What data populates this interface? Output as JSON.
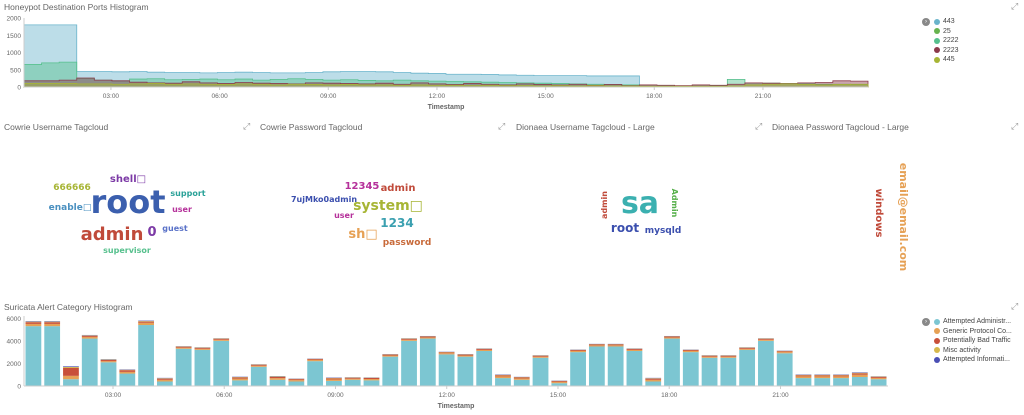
{
  "panels": {
    "ports_title": "Honeypot Destination Ports Histogram",
    "cowrie_user_title": "Cowrie Username Tagcloud",
    "cowrie_pass_title": "Cowrie Password Tagcloud",
    "dionaea_user_title": "Dionaea Username Tagcloud - Large",
    "dionaea_pass_title": "Dionaea Password Tagcloud - Large",
    "suricata_title": "Suricata Alert Category Histogram"
  },
  "icons": {
    "expand": "expand-icon",
    "legend_toggle": "chevron-right-icon"
  },
  "chart_data": [
    {
      "type": "area",
      "title": "Honeypot Destination Ports Histogram",
      "xlabel": "Timestamp",
      "x_ticks": [
        "03:00",
        "06:00",
        "09:00",
        "12:00",
        "15:00",
        "18:00",
        "21:00"
      ],
      "y_ticks": [
        "0",
        "500",
        "1000",
        "1500",
        "2000"
      ],
      "y_tick_values": [
        0,
        500,
        1000,
        1500,
        2000
      ],
      "legend_position": "right",
      "series": [
        {
          "name": "443",
          "color": "#6ab4cb",
          "values": [
            1800,
            1800,
            1800,
            450,
            450,
            440,
            450,
            430,
            420,
            420,
            410,
            420,
            430,
            420,
            410,
            410,
            420,
            440,
            450,
            450,
            440,
            420,
            400,
            390,
            370,
            370,
            360,
            350,
            340,
            330,
            330,
            330,
            320,
            320,
            320,
            0,
            0,
            0,
            0,
            0,
            0,
            0,
            0,
            0,
            0,
            0,
            0,
            0
          ]
        },
        {
          "name": "25",
          "color": "#67b34e",
          "values": [
            0,
            0,
            0,
            0,
            0,
            0,
            0,
            0,
            0,
            0,
            0,
            0,
            0,
            0,
            0,
            0,
            0,
            0,
            0,
            0,
            0,
            0,
            0,
            0,
            0,
            0,
            0,
            0,
            0,
            0,
            0,
            0,
            0,
            0,
            0,
            0,
            0,
            0,
            0,
            0,
            0,
            0,
            0,
            0,
            0,
            0,
            0,
            0
          ]
        },
        {
          "name": "2222",
          "color": "#56c08d",
          "values": [
            650,
            700,
            720,
            250,
            200,
            180,
            230,
            240,
            210,
            220,
            230,
            210,
            230,
            200,
            220,
            240,
            220,
            200,
            210,
            190,
            180,
            200,
            180,
            170,
            160,
            150,
            140,
            130,
            120,
            110,
            100,
            90,
            80,
            70,
            60,
            30,
            30,
            30,
            30,
            40,
            220,
            120,
            110,
            100,
            90,
            80,
            80,
            70
          ]
        },
        {
          "name": "2223",
          "color": "#8b3a4a",
          "values": [
            180,
            180,
            200,
            260,
            200,
            180,
            140,
            120,
            110,
            150,
            120,
            100,
            130,
            110,
            100,
            90,
            120,
            110,
            100,
            90,
            110,
            80,
            120,
            90,
            70,
            100,
            80,
            60,
            90,
            70,
            60,
            80,
            50,
            70,
            40,
            60,
            50,
            40,
            60,
            50,
            80,
            120,
            110,
            100,
            120,
            130,
            180,
            170
          ]
        },
        {
          "name": "445",
          "color": "#a7b535",
          "values": [
            100,
            100,
            100,
            90,
            90,
            80,
            90,
            100,
            80,
            90,
            80,
            70,
            90,
            80,
            60,
            80,
            70,
            60,
            70,
            60,
            60,
            50,
            60,
            50,
            50,
            40,
            50,
            40,
            40,
            30,
            40,
            30,
            40,
            30,
            30,
            20,
            20,
            20,
            20,
            20,
            30,
            60,
            80,
            90,
            70,
            60,
            70,
            80
          ]
        }
      ]
    },
    {
      "type": "bar",
      "title": "Suricata Alert Category Histogram",
      "xlabel": "Timestamp",
      "x_ticks": [
        "03:00",
        "06:00",
        "09:00",
        "12:00",
        "15:00",
        "18:00",
        "21:00"
      ],
      "y_ticks": [
        "0",
        "2000",
        "4000",
        "6000"
      ],
      "y_tick_values": [
        0,
        2000,
        4000,
        6000
      ],
      "legend_position": "right",
      "series": [
        {
          "name": "Attempted Administr...",
          "color": "#7cc6d2",
          "values": [
            5300,
            5300,
            600,
            4200,
            2100,
            1100,
            5400,
            400,
            3300,
            3200,
            4000,
            500,
            1700,
            550,
            400,
            2200,
            450,
            550,
            500,
            2600,
            4000,
            4200,
            2800,
            2600,
            3100,
            700,
            550,
            2500,
            250,
            3000,
            3500,
            3500,
            3100,
            400,
            4200,
            3000,
            2500,
            2500,
            3200,
            4000,
            2900,
            700,
            700,
            700,
            800,
            600
          ]
        },
        {
          "name": "Generic Protocol Co...",
          "color": "#e6a155",
          "values": [
            200,
            200,
            300,
            150,
            100,
            150,
            200,
            150,
            100,
            100,
            100,
            150,
            100,
            150,
            120,
            100,
            130,
            100,
            120,
            100,
            100,
            100,
            100,
            100,
            100,
            150,
            120,
            100,
            100,
            100,
            100,
            100,
            100,
            150,
            100,
            100,
            100,
            100,
            100,
            100,
            100,
            150,
            150,
            150,
            200,
            120
          ]
        },
        {
          "name": "Potentially Bad Traffic",
          "color": "#c8503a",
          "values": [
            150,
            150,
            700,
            100,
            100,
            150,
            100,
            100,
            80,
            80,
            80,
            100,
            80,
            100,
            90,
            80,
            100,
            80,
            90,
            80,
            80,
            80,
            80,
            80,
            80,
            100,
            90,
            80,
            80,
            80,
            80,
            80,
            80,
            100,
            80,
            80,
            80,
            80,
            80,
            80,
            80,
            100,
            100,
            100,
            120,
            90
          ]
        },
        {
          "name": "Misc activity",
          "color": "#d6b84c",
          "values": [
            50,
            50,
            80,
            40,
            40,
            40,
            50,
            40,
            30,
            30,
            30,
            40,
            30,
            40,
            30,
            30,
            40,
            30,
            30,
            30,
            30,
            30,
            30,
            30,
            30,
            40,
            30,
            30,
            30,
            30,
            30,
            30,
            30,
            40,
            30,
            30,
            30,
            30,
            30,
            30,
            30,
            40,
            40,
            40,
            50,
            30
          ]
        },
        {
          "name": "Attempted Informati...",
          "color": "#4a4fb4",
          "values": [
            40,
            40,
            60,
            30,
            30,
            30,
            40,
            30,
            20,
            20,
            20,
            30,
            20,
            30,
            20,
            20,
            30,
            20,
            20,
            20,
            20,
            20,
            20,
            20,
            20,
            30,
            20,
            20,
            20,
            20,
            20,
            20,
            20,
            30,
            20,
            20,
            20,
            20,
            20,
            20,
            20,
            30,
            30,
            30,
            40,
            20
          ]
        }
      ]
    },
    {
      "type": "tagcloud",
      "title": "Cowrie Username Tagcloud",
      "tags": [
        {
          "text": "root",
          "color": "#3b5fae"
        },
        {
          "text": "admin",
          "color": "#c04a3a"
        },
        {
          "text": "shell□",
          "color": "#7c3aa6"
        },
        {
          "text": "666666",
          "color": "#a7b535"
        },
        {
          "text": "enable□",
          "color": "#4a90c0"
        },
        {
          "text": "support",
          "color": "#2aa198"
        },
        {
          "text": "user",
          "color": "#b5309a"
        },
        {
          "text": "guest",
          "color": "#5a72c8"
        },
        {
          "text": "0",
          "color": "#7c3aa6"
        },
        {
          "text": "supervisor",
          "color": "#56c08d"
        }
      ]
    },
    {
      "type": "tagcloud",
      "title": "Cowrie Password Tagcloud",
      "tags": [
        {
          "text": "12345",
          "color": "#b5309a"
        },
        {
          "text": "admin",
          "color": "#c04a3a"
        },
        {
          "text": "7ujMko0admin",
          "color": "#3b4fae"
        },
        {
          "text": "system□",
          "color": "#a7b535"
        },
        {
          "text": "user",
          "color": "#b5309a"
        },
        {
          "text": "1234",
          "color": "#3ba0b0"
        },
        {
          "text": "sh□",
          "color": "#e6a155"
        },
        {
          "text": "password",
          "color": "#c86a3a"
        }
      ]
    },
    {
      "type": "tagcloud",
      "title": "Dionaea Username Tagcloud - Large",
      "tags": [
        {
          "text": "sa",
          "color": "#3bb0b0"
        },
        {
          "text": "root",
          "color": "#3b4fae"
        },
        {
          "text": "mysqld",
          "color": "#3b4fae"
        },
        {
          "text": "admin",
          "color": "#c04a3a"
        },
        {
          "text": "Admin",
          "color": "#56b04a"
        }
      ]
    },
    {
      "type": "tagcloud",
      "title": "Dionaea Password Tagcloud - Large",
      "tags": [
        {
          "text": "email@email.com",
          "color": "#e6a155"
        },
        {
          "text": "windows",
          "color": "#c04a3a"
        }
      ]
    }
  ]
}
